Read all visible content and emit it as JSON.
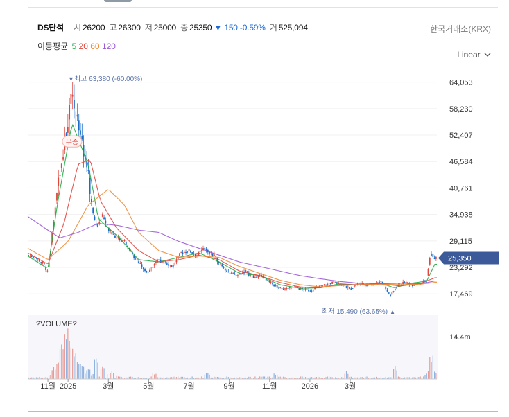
{
  "header": {
    "name": "DS단석",
    "open_label": "시",
    "open": "26200",
    "high_label": "고",
    "high": "26300",
    "low_label": "저",
    "low": "25000",
    "close_label": "종",
    "close": "25350",
    "change_arrow": "▼",
    "change": "150",
    "change_pct": "-0.59%",
    "volume_label": "거",
    "volume": "525,094",
    "exchange": "한국거래소(KRX)"
  },
  "moving_average": {
    "label": "이동평균",
    "periods": [
      {
        "text": "5",
        "color": "#22aa44"
      },
      {
        "text": "20",
        "color": "#e0463c"
      },
      {
        "text": "60",
        "color": "#f08c3a"
      },
      {
        "text": "120",
        "color": "#9b59d6"
      }
    ]
  },
  "scale_toggle": {
    "label": "Linear",
    "icon": "chevron-down-icon"
  },
  "colors": {
    "up": "#e0463c",
    "down": "#1a6cc8",
    "price_tag": "#3c5a99",
    "grid": "#f0f0f0"
  },
  "chart_data": {
    "type": "candlestick",
    "y_axis_ticks": [
      "64,053",
      "58,230",
      "52,407",
      "46,584",
      "40,761",
      "34,938",
      "29,115",
      "23,292",
      "17,469"
    ],
    "y_tick_values": [
      64053,
      58230,
      52407,
      46584,
      40761,
      34938,
      29115,
      23292,
      17469
    ],
    "ylim": [
      14000,
      67500
    ],
    "x_axis_ticks": [
      "11월",
      "2025",
      "3월",
      "5월",
      "7월",
      "9월",
      "11월",
      "2026",
      "3월"
    ],
    "x_tick_index": [
      1.0,
      2.0,
      4.0,
      6.0,
      8.0,
      10.0,
      12.0,
      14.0,
      16.0
    ],
    "x_domain": [
      0,
      20.3
    ],
    "last_price": "25,350",
    "last_price_value": 25350,
    "high_marker": {
      "arrow": "▼",
      "label": "최고 63,380 (-60.00%)",
      "value": 63380,
      "index": 2.2
    },
    "low_marker": {
      "arrow": "▲",
      "label": "최저 15,490 (63.65%)",
      "value": 15490,
      "index": 18.0
    },
    "event_badge": {
      "label": "무증",
      "value": 51000,
      "index": 2.2
    },
    "volume_panel": {
      "label": "?VOLUME?",
      "ticks": [
        "14.4m"
      ],
      "tick_values": [
        14400000
      ],
      "ymax": 17000000
    },
    "price_path": [
      [
        0.0,
        26000
      ],
      [
        0.4,
        25500
      ],
      [
        0.8,
        24000
      ],
      [
        1.0,
        22000
      ],
      [
        1.2,
        30000
      ],
      [
        1.4,
        38000
      ],
      [
        1.6,
        45000
      ],
      [
        1.8,
        50000
      ],
      [
        2.0,
        55000
      ],
      [
        2.2,
        61000
      ],
      [
        2.4,
        57000
      ],
      [
        2.6,
        54000
      ],
      [
        2.8,
        49000
      ],
      [
        3.0,
        44000
      ],
      [
        3.2,
        36000
      ],
      [
        3.4,
        32000
      ],
      [
        3.7,
        35000
      ],
      [
        4.0,
        31500
      ],
      [
        4.4,
        30000
      ],
      [
        4.8,
        29000
      ],
      [
        5.2,
        26000
      ],
      [
        5.6,
        24000
      ],
      [
        6.0,
        22000
      ],
      [
        6.4,
        25000
      ],
      [
        6.8,
        24500
      ],
      [
        7.2,
        23500
      ],
      [
        7.6,
        26500
      ],
      [
        8.0,
        27000
      ],
      [
        8.4,
        26000
      ],
      [
        8.8,
        27500
      ],
      [
        9.2,
        26000
      ],
      [
        9.6,
        24000
      ],
      [
        10.0,
        22000
      ],
      [
        10.4,
        21500
      ],
      [
        10.8,
        22500
      ],
      [
        11.2,
        21000
      ],
      [
        11.6,
        21500
      ],
      [
        12.0,
        20000
      ],
      [
        12.4,
        19000
      ],
      [
        12.8,
        18500
      ],
      [
        13.2,
        19000
      ],
      [
        13.6,
        18500
      ],
      [
        14.0,
        18200
      ],
      [
        14.4,
        19000
      ],
      [
        14.8,
        19500
      ],
      [
        15.2,
        20000
      ],
      [
        15.6,
        19500
      ],
      [
        16.0,
        18500
      ],
      [
        16.4,
        19800
      ],
      [
        16.8,
        19500
      ],
      [
        17.2,
        19800
      ],
      [
        17.6,
        20000
      ],
      [
        18.0,
        17000
      ],
      [
        18.3,
        19000
      ],
      [
        18.7,
        20000
      ],
      [
        19.1,
        19500
      ],
      [
        19.5,
        20000
      ],
      [
        19.8,
        20500
      ],
      [
        20.0,
        26500
      ],
      [
        20.2,
        25350
      ]
    ],
    "ma_paths": [
      {
        "name": "5",
        "color": "#22aa44",
        "points": [
          [
            0.0,
            25800
          ],
          [
            1.0,
            23000
          ],
          [
            1.5,
            38000
          ],
          [
            2.2,
            55000
          ],
          [
            3.0,
            46000
          ],
          [
            3.5,
            34000
          ],
          [
            4.5,
            30000
          ],
          [
            5.5,
            25000
          ],
          [
            6.5,
            24500
          ],
          [
            7.5,
            25500
          ],
          [
            8.5,
            26500
          ],
          [
            9.5,
            24500
          ],
          [
            10.5,
            22000
          ],
          [
            11.5,
            21500
          ],
          [
            12.5,
            19500
          ],
          [
            13.5,
            18700
          ],
          [
            14.5,
            18800
          ],
          [
            15.5,
            19700
          ],
          [
            16.5,
            19400
          ],
          [
            17.5,
            19800
          ],
          [
            18.2,
            18800
          ],
          [
            19.0,
            19800
          ],
          [
            19.8,
            20300
          ],
          [
            20.2,
            24000
          ]
        ]
      },
      {
        "name": "20",
        "color": "#e0463c",
        "points": [
          [
            0.0,
            26500
          ],
          [
            1.0,
            24000
          ],
          [
            1.8,
            33000
          ],
          [
            2.5,
            46000
          ],
          [
            3.1,
            47000
          ],
          [
            3.6,
            38000
          ],
          [
            4.4,
            32000
          ],
          [
            5.5,
            27000
          ],
          [
            6.5,
            24500
          ],
          [
            7.5,
            25000
          ],
          [
            8.5,
            26000
          ],
          [
            9.5,
            25000
          ],
          [
            10.5,
            22500
          ],
          [
            11.5,
            21500
          ],
          [
            12.5,
            20000
          ],
          [
            13.5,
            19000
          ],
          [
            14.5,
            18800
          ],
          [
            15.5,
            19500
          ],
          [
            16.5,
            19500
          ],
          [
            17.5,
            19700
          ],
          [
            18.5,
            19200
          ],
          [
            19.5,
            19800
          ],
          [
            20.2,
            21000
          ]
        ]
      },
      {
        "name": "60",
        "color": "#f08c3a",
        "points": [
          [
            0.0,
            27500
          ],
          [
            1.0,
            25000
          ],
          [
            2.0,
            29000
          ],
          [
            3.0,
            37000
          ],
          [
            4.0,
            40500
          ],
          [
            4.8,
            37000
          ],
          [
            5.5,
            31000
          ],
          [
            6.5,
            27000
          ],
          [
            7.5,
            25500
          ],
          [
            8.5,
            25800
          ],
          [
            9.5,
            25500
          ],
          [
            10.5,
            23500
          ],
          [
            11.5,
            22000
          ],
          [
            12.5,
            20500
          ],
          [
            13.5,
            19500
          ],
          [
            14.5,
            19000
          ],
          [
            15.5,
            19300
          ],
          [
            16.5,
            19500
          ],
          [
            17.5,
            19600
          ],
          [
            18.5,
            19500
          ],
          [
            19.5,
            19600
          ],
          [
            20.2,
            20000
          ]
        ]
      },
      {
        "name": "120",
        "color": "#9b59d6",
        "points": [
          [
            0.0,
            34500
          ],
          [
            1.0,
            31500
          ],
          [
            1.6,
            29800
          ],
          [
            2.5,
            31000
          ],
          [
            3.5,
            33000
          ],
          [
            4.5,
            32500
          ],
          [
            5.5,
            31500
          ],
          [
            6.5,
            31000
          ],
          [
            7.5,
            29000
          ],
          [
            8.5,
            27500
          ],
          [
            9.5,
            26000
          ],
          [
            10.5,
            24500
          ],
          [
            11.5,
            23500
          ],
          [
            12.5,
            22500
          ],
          [
            13.5,
            21500
          ],
          [
            14.5,
            20800
          ],
          [
            15.5,
            20200
          ],
          [
            16.5,
            19800
          ],
          [
            17.5,
            19700
          ],
          [
            18.5,
            19800
          ],
          [
            19.5,
            19700
          ],
          [
            20.2,
            20300
          ]
        ]
      }
    ],
    "volume_peaks": [
      [
        1.3,
        3200000
      ],
      [
        1.5,
        6500000
      ],
      [
        1.7,
        10000000
      ],
      [
        1.9,
        14000000
      ],
      [
        2.0,
        12500000
      ],
      [
        2.1,
        8500000
      ],
      [
        2.3,
        9000000
      ],
      [
        2.5,
        6000000
      ],
      [
        2.7,
        4500000
      ],
      [
        3.0,
        3500000
      ],
      [
        3.4,
        7000000
      ],
      [
        3.7,
        4000000
      ],
      [
        4.2,
        2500000
      ],
      [
        6.3,
        2000000
      ],
      [
        8.9,
        1800000
      ],
      [
        12.3,
        1500000
      ],
      [
        15.8,
        2200000
      ],
      [
        18.2,
        3500000
      ],
      [
        20.0,
        6800000
      ]
    ]
  }
}
